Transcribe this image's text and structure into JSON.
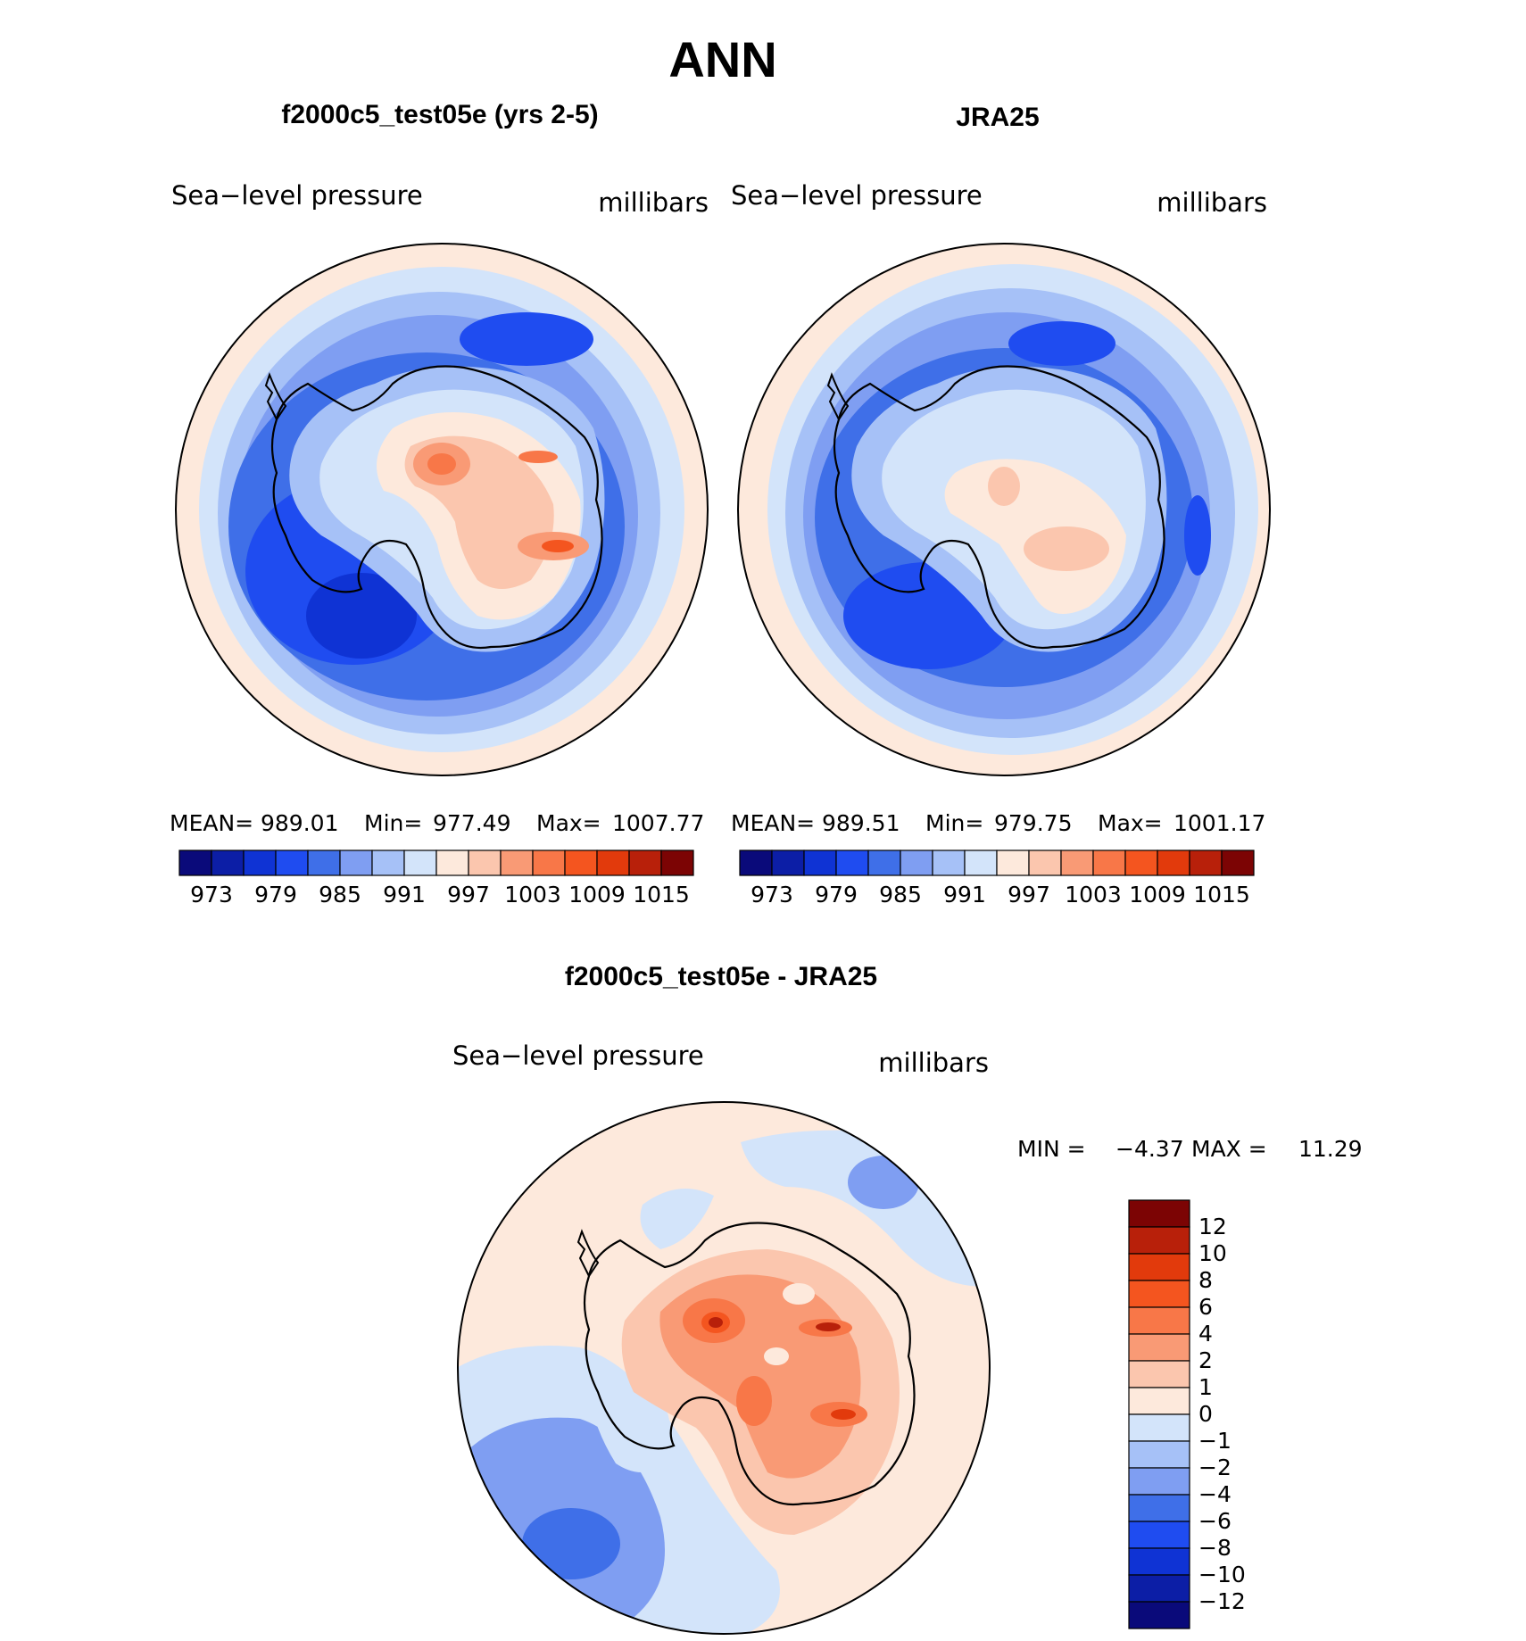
{
  "main_title": "ANN",
  "palette": {
    "colors": [
      "#0a0a7a",
      "#0c1ea6",
      "#0f33d4",
      "#1f4cf0",
      "#3f6fe8",
      "#7f9ef2",
      "#a6c1f7",
      "#d3e4fa",
      "#fde9dc",
      "#fbc6ae",
      "#f99a75",
      "#f87748",
      "#f4551f",
      "#e23a0c",
      "#b8200a",
      "#7c0404"
    ],
    "ticks": [
      "973",
      "979",
      "985",
      "991",
      "997",
      "1003",
      "1009",
      "1015"
    ]
  },
  "panels": [
    {
      "id": "model",
      "title": "f2000c5_test05e (yrs 2-5)",
      "variable": "Sea−level pressure",
      "units": "millibars",
      "stats": {
        "mean_label": "MEAN=",
        "mean": "989.01",
        "min_label": "Min=",
        "min": "977.49",
        "max_label": "Max=",
        "max": "1007.77"
      }
    },
    {
      "id": "obs",
      "title": "JRA25",
      "variable": "Sea−level pressure",
      "units": "millibars",
      "stats": {
        "mean_label": "MEAN=",
        "mean": "989.51",
        "min_label": "Min=",
        "min": "979.75",
        "max_label": "Max=",
        "max": "1001.17"
      }
    }
  ],
  "diff": {
    "title": "f2000c5_test05e - JRA25",
    "variable": "Sea−level pressure",
    "units": "millibars",
    "minmax": {
      "min_label": "MIN =",
      "min": "−4.37",
      "max_label": "MAX =",
      "max": "11.29"
    },
    "colorbar_colors_top_down": [
      "#7c0404",
      "#b8200a",
      "#e23a0c",
      "#f4551f",
      "#f87748",
      "#f99a75",
      "#fbc6ae",
      "#fde9dc",
      "#d3e4fa",
      "#a6c1f7",
      "#7f9ef2",
      "#3f6fe8",
      "#1f4cf0",
      "#0f33d4",
      "#0c1ea6",
      "#0a0a7a"
    ],
    "colorbar_labels": [
      "12",
      "10",
      "8",
      "6",
      "4",
      "2",
      "1",
      "0",
      "−1",
      "−2",
      "−4",
      "−6",
      "−8",
      "−10",
      "−12"
    ]
  }
}
